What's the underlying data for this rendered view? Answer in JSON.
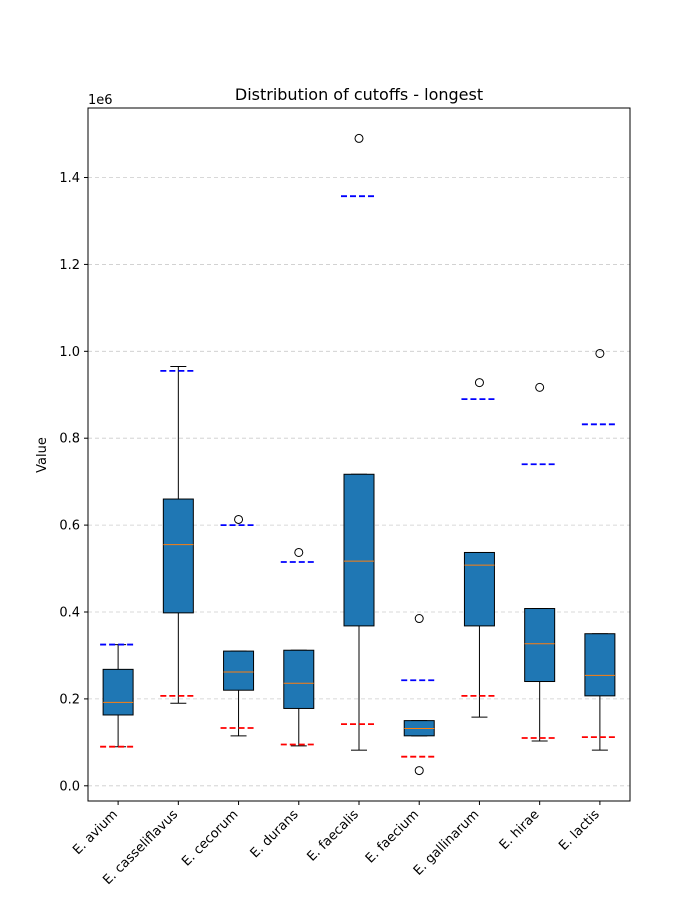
{
  "chart_data": {
    "type": "box",
    "title": "Distribution of cutoffs - longest",
    "xlabel": "",
    "ylabel": "Value",
    "y_offset_label": "1e6",
    "y_scale": 1000000,
    "ylim": [
      -0.035,
      1.56
    ],
    "yticks": [
      0.0,
      0.2,
      0.4,
      0.6,
      0.8,
      1.0,
      1.2,
      1.4
    ],
    "ytick_labels": [
      "0.0",
      "0.2",
      "0.4",
      "0.6",
      "0.8",
      "1.0",
      "1.2",
      "1.4"
    ],
    "grid": "y-dashed",
    "colors": {
      "box_fill": "#1f77b4",
      "median": "#ff7f0e",
      "upper_marker": "#0000ff",
      "lower_marker": "#ff0000",
      "grid": "#cccccc"
    },
    "categories": [
      "E. avium",
      "E. casseliflavus",
      "E. cecorum",
      "E. durans",
      "E. faecalis",
      "E. faecium",
      "E. gallinarum",
      "E. hirae",
      "E. lactis"
    ],
    "boxes": [
      {
        "whisker_low": 0.09,
        "q1": 0.163,
        "median": 0.192,
        "q3": 0.268,
        "whisker_high": 0.325,
        "outliers": []
      },
      {
        "whisker_low": 0.19,
        "q1": 0.398,
        "median": 0.555,
        "q3": 0.66,
        "whisker_high": 0.965,
        "outliers": []
      },
      {
        "whisker_low": 0.115,
        "q1": 0.22,
        "median": 0.262,
        "q3": 0.31,
        "whisker_high": 0.31,
        "outliers": [
          0.613
        ]
      },
      {
        "whisker_low": 0.092,
        "q1": 0.178,
        "median": 0.236,
        "q3": 0.312,
        "whisker_high": 0.312,
        "outliers": [
          0.537
        ]
      },
      {
        "whisker_low": 0.082,
        "q1": 0.368,
        "median": 0.517,
        "q3": 0.717,
        "whisker_high": 0.717,
        "outliers": [
          1.49
        ]
      },
      {
        "whisker_low": 0.115,
        "q1": 0.115,
        "median": 0.132,
        "q3": 0.15,
        "whisker_high": 0.15,
        "outliers": [
          0.385,
          0.035
        ]
      },
      {
        "whisker_low": 0.158,
        "q1": 0.368,
        "median": 0.508,
        "q3": 0.537,
        "whisker_high": 0.537,
        "outliers": [
          0.928
        ]
      },
      {
        "whisker_low": 0.103,
        "q1": 0.24,
        "median": 0.327,
        "q3": 0.408,
        "whisker_high": 0.408,
        "outliers": [
          0.917
        ]
      },
      {
        "whisker_low": 0.082,
        "q1": 0.207,
        "median": 0.254,
        "q3": 0.35,
        "whisker_high": 0.35,
        "outliers": [
          0.995
        ]
      }
    ],
    "upper_cutoffs": [
      0.325,
      0.955,
      0.6,
      0.515,
      1.357,
      0.243,
      0.89,
      0.74,
      0.832
    ],
    "lower_cutoffs": [
      0.09,
      0.207,
      0.133,
      0.095,
      0.142,
      0.067,
      0.207,
      0.11,
      0.112
    ]
  }
}
